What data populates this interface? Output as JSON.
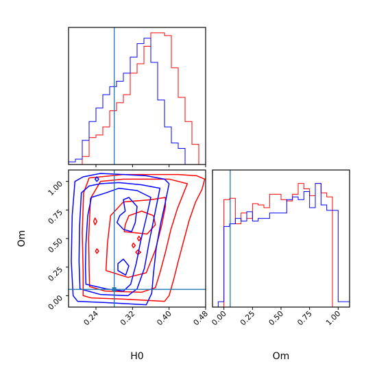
{
  "chart_data": {
    "type": "corner",
    "parameters": [
      "H0",
      "Om"
    ],
    "truth": {
      "H0": 0.28,
      "Om": 0.055
    },
    "colors": {
      "red": "#ff0000",
      "blue": "#0000ff",
      "truth": "#1f77b4"
    },
    "panels": [
      {
        "type": "histogram",
        "parameter": "H0",
        "xlim": [
          0.18,
          0.48
        ],
        "edges": [
          0.18,
          0.195,
          0.21,
          0.225,
          0.24,
          0.255,
          0.27,
          0.285,
          0.3,
          0.315,
          0.33,
          0.345,
          0.36,
          0.375,
          0.39,
          0.405,
          0.42,
          0.435,
          0.45,
          0.465,
          0.48
        ],
        "series": [
          {
            "color": "red",
            "counts": [
              0.0,
              0.0,
              0.06,
              0.2,
              0.22,
              0.28,
              0.4,
              0.46,
              0.52,
              0.68,
              0.75,
              0.88,
              0.98,
              0.98,
              0.96,
              0.72,
              0.5,
              0.32,
              0.15,
              0.0
            ]
          },
          {
            "color": "blue",
            "counts": [
              0.02,
              0.04,
              0.18,
              0.32,
              0.42,
              0.52,
              0.58,
              0.62,
              0.68,
              0.8,
              0.9,
              0.94,
              0.76,
              0.48,
              0.28,
              0.16,
              0.12,
              0.0,
              0.0,
              0.0
            ]
          }
        ]
      },
      {
        "type": "contour",
        "x": "H0",
        "y": "Om",
        "xlim": [
          0.18,
          0.48
        ],
        "ylim": [
          -0.1,
          1.1
        ],
        "xticks": [
          "0.24",
          "0.32",
          "0.40",
          "0.48"
        ],
        "yticks": [
          "0.00",
          "0.25",
          "0.50",
          "0.75",
          "1.00"
        ],
        "xlabel": "H0",
        "ylabel": "Om",
        "red_contours": [
          [
            [
              0.212,
              0.0
            ],
            [
              0.23,
              -0.02
            ],
            [
              0.3,
              -0.03
            ],
            [
              0.39,
              -0.05
            ],
            [
              0.4,
              0.0
            ],
            [
              0.41,
              0.14
            ],
            [
              0.42,
              0.3
            ],
            [
              0.432,
              0.48
            ],
            [
              0.444,
              0.66
            ],
            [
              0.458,
              0.82
            ],
            [
              0.472,
              0.93
            ],
            [
              0.478,
              1.02
            ],
            [
              0.46,
              1.05
            ],
            [
              0.42,
              1.06
            ],
            [
              0.3,
              1.06
            ],
            [
              0.225,
              1.03
            ],
            [
              0.213,
              0.9
            ],
            [
              0.21,
              0.55
            ],
            [
              0.212,
              0.2
            ]
          ],
          [
            [
              0.226,
              0.08
            ],
            [
              0.26,
              0.04
            ],
            [
              0.34,
              0.03
            ],
            [
              0.37,
              0.07
            ],
            [
              0.38,
              0.2
            ],
            [
              0.392,
              0.38
            ],
            [
              0.404,
              0.58
            ],
            [
              0.418,
              0.76
            ],
            [
              0.432,
              0.9
            ],
            [
              0.44,
              0.98
            ],
            [
              0.4,
              1.02
            ],
            [
              0.3,
              1.02
            ],
            [
              0.25,
              1.0
            ],
            [
              0.228,
              0.85
            ],
            [
              0.224,
              0.5
            ],
            [
              0.225,
              0.25
            ]
          ],
          [
            [
              0.262,
              0.22
            ],
            [
              0.31,
              0.16
            ],
            [
              0.35,
              0.2
            ],
            [
              0.37,
              0.4
            ],
            [
              0.384,
              0.62
            ],
            [
              0.392,
              0.78
            ],
            [
              0.392,
              0.86
            ],
            [
              0.36,
              0.84
            ],
            [
              0.3,
              0.82
            ],
            [
              0.272,
              0.7
            ],
            [
              0.265,
              0.45
            ]
          ],
          [
            [
              0.302,
              0.56
            ],
            [
              0.352,
              0.54
            ],
            [
              0.37,
              0.62
            ],
            [
              0.366,
              0.7
            ],
            [
              0.34,
              0.74
            ],
            [
              0.312,
              0.7
            ],
            [
              0.304,
              0.62
            ]
          ],
          [
            [
              0.238,
              0.62
            ],
            [
              0.242,
              0.65
            ],
            [
              0.238,
              0.68
            ],
            [
              0.235,
              0.65
            ]
          ],
          [
            [
              0.242,
              0.37
            ],
            [
              0.246,
              0.39
            ],
            [
              0.242,
              0.41
            ],
            [
              0.239,
              0.39
            ]
          ],
          [
            [
              0.322,
              0.42
            ],
            [
              0.326,
              0.44
            ],
            [
              0.322,
              0.46
            ],
            [
              0.319,
              0.44
            ]
          ],
          [
            [
              0.332,
              0.36
            ],
            [
              0.338,
              0.38
            ],
            [
              0.332,
              0.4
            ],
            [
              0.327,
              0.38
            ]
          ],
          [
            [
              0.334,
              0.48
            ],
            [
              0.338,
              0.5
            ],
            [
              0.334,
              0.52
            ],
            [
              0.331,
              0.5
            ]
          ]
        ],
        "blue_contours": [
          [
            [
              0.19,
              0.0
            ],
            [
              0.2,
              -0.05
            ],
            [
              0.26,
              -0.06
            ],
            [
              0.35,
              -0.08
            ],
            [
              0.362,
              0.02
            ],
            [
              0.366,
              0.2
            ],
            [
              0.372,
              0.42
            ],
            [
              0.382,
              0.64
            ],
            [
              0.392,
              0.82
            ],
            [
              0.4,
              0.98
            ],
            [
              0.39,
              1.02
            ],
            [
              0.35,
              1.05
            ],
            [
              0.3,
              1.06
            ],
            [
              0.25,
              1.07
            ],
            [
              0.212,
              1.04
            ],
            [
              0.194,
              1.0
            ],
            [
              0.188,
              0.7
            ],
            [
              0.186,
              0.3
            ]
          ],
          [
            [
              0.205,
              0.06
            ],
            [
              0.25,
              0.01
            ],
            [
              0.31,
              0.0
            ],
            [
              0.33,
              0.06
            ],
            [
              0.346,
              0.24
            ],
            [
              0.356,
              0.46
            ],
            [
              0.366,
              0.66
            ],
            [
              0.374,
              0.82
            ],
            [
              0.38,
              0.94
            ],
            [
              0.34,
              0.97
            ],
            [
              0.29,
              0.99
            ],
            [
              0.25,
              0.98
            ],
            [
              0.225,
              0.96
            ],
            [
              0.208,
              0.9
            ],
            [
              0.204,
              0.6
            ],
            [
              0.203,
              0.3
            ]
          ],
          [
            [
              0.218,
              0.1
            ],
            [
              0.262,
              0.06
            ],
            [
              0.3,
              0.04
            ],
            [
              0.316,
              0.1
            ],
            [
              0.328,
              0.28
            ],
            [
              0.338,
              0.48
            ],
            [
              0.35,
              0.68
            ],
            [
              0.36,
              0.86
            ],
            [
              0.33,
              0.92
            ],
            [
              0.29,
              0.94
            ],
            [
              0.262,
              0.9
            ],
            [
              0.23,
              0.86
            ],
            [
              0.222,
              0.7
            ],
            [
              0.218,
              0.45
            ],
            [
              0.217,
              0.25
            ]
          ],
          [
            [
              0.288,
              0.22
            ],
            [
              0.305,
              0.18
            ],
            [
              0.312,
              0.26
            ],
            [
              0.3,
              0.32
            ],
            [
              0.288,
              0.28
            ]
          ],
          [
            [
              0.286,
              0.64
            ],
            [
              0.3,
              0.58
            ],
            [
              0.318,
              0.56
            ],
            [
              0.326,
              0.64
            ],
            [
              0.33,
              0.78
            ],
            [
              0.312,
              0.86
            ],
            [
              0.3,
              0.84
            ],
            [
              0.304,
              0.74
            ],
            [
              0.292,
              0.7
            ]
          ],
          [
            [
              0.242,
              1.0
            ],
            [
              0.246,
              1.02
            ],
            [
              0.242,
              1.04
            ],
            [
              0.238,
              1.02
            ]
          ]
        ]
      },
      {
        "type": "histogram",
        "parameter": "Om",
        "xlim": [
          -0.1,
          1.1
        ],
        "xticks": [
          "0.00",
          "0.25",
          "0.50",
          "0.75",
          "1.00"
        ],
        "xlabel": "Om",
        "edges": [
          -0.1,
          -0.05,
          0.0,
          0.05,
          0.1,
          0.15,
          0.2,
          0.25,
          0.3,
          0.35,
          0.4,
          0.45,
          0.5,
          0.55,
          0.6,
          0.65,
          0.7,
          0.75,
          0.8,
          0.85,
          0.9,
          0.95,
          1.0,
          1.05,
          1.1
        ],
        "series": [
          {
            "color": "red",
            "counts": [
              0.0,
              0.0,
              0.8,
              0.81,
              0.62,
              0.7,
              0.66,
              0.77,
              0.76,
              0.74,
              0.84,
              0.84,
              0.8,
              0.79,
              0.84,
              0.92,
              0.88,
              0.83,
              0.92,
              0.85,
              0.82,
              0.0,
              0.0,
              0.0
            ]
          },
          {
            "color": "blue",
            "counts": [
              0.0,
              0.04,
              0.6,
              0.62,
              0.66,
              0.64,
              0.71,
              0.64,
              0.66,
              0.66,
              0.7,
              0.7,
              0.7,
              0.8,
              0.82,
              0.8,
              0.86,
              0.74,
              0.92,
              0.76,
              0.72,
              0.72,
              0.04,
              0.04
            ]
          }
        ]
      }
    ]
  }
}
